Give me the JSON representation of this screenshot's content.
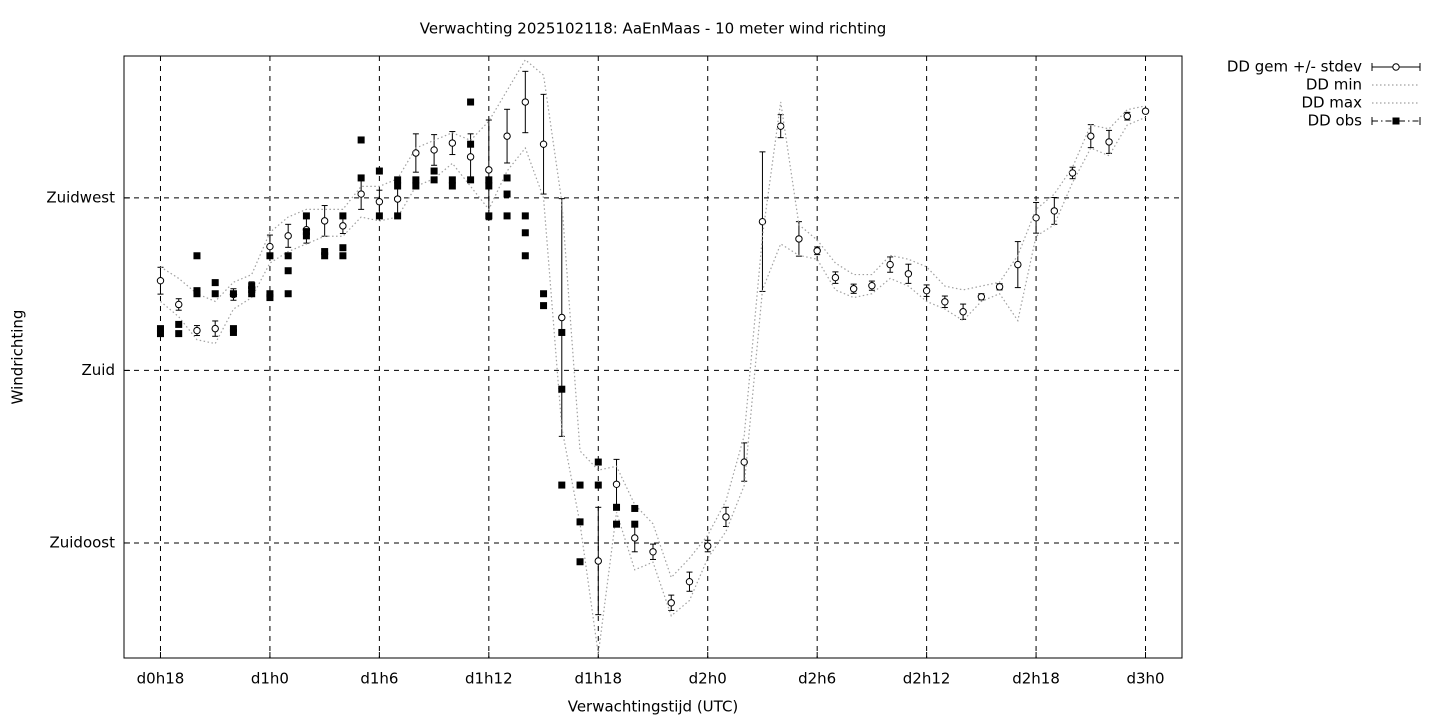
{
  "chart_data": {
    "type": "errorbar",
    "title": "Verwachting 2025102118: AaEnMaas - 10 meter wind richting",
    "xlabel": "Verwachtingstijd (UTC)",
    "ylabel": "Windrichting",
    "xlim": [
      16,
      74
    ],
    "ylim": [
      105,
      262
    ],
    "xticks": [
      {
        "value": 18,
        "label": "d0h18"
      },
      {
        "value": 24,
        "label": "d1h0"
      },
      {
        "value": 30,
        "label": "d1h6"
      },
      {
        "value": 36,
        "label": "d1h12"
      },
      {
        "value": 42,
        "label": "d1h18"
      },
      {
        "value": 48,
        "label": "d2h0"
      },
      {
        "value": 54,
        "label": "d2h6"
      },
      {
        "value": 60,
        "label": "d2h12"
      },
      {
        "value": 66,
        "label": "d2h18"
      },
      {
        "value": 72,
        "label": "d3h0"
      }
    ],
    "yticks": [
      {
        "value": 135,
        "label": "Zuidoost"
      },
      {
        "value": 180,
        "label": "Zuid"
      },
      {
        "value": 225,
        "label": "Zuidwest"
      }
    ],
    "grid": true,
    "legend": "outside-top-right",
    "x": [
      18,
      19,
      20,
      21,
      22,
      23,
      24,
      25,
      26,
      27,
      28,
      29,
      30,
      31,
      32,
      33,
      34,
      35,
      36,
      37,
      38,
      39,
      40,
      41,
      42,
      43,
      44,
      45,
      46,
      47,
      48,
      49,
      50,
      51,
      52,
      53,
      54,
      55,
      56,
      57,
      58,
      59,
      60,
      61,
      62,
      63,
      64,
      65,
      66,
      67,
      68,
      69,
      70,
      71,
      72
    ],
    "series": [
      {
        "name": "DD gem +/- stdev",
        "style": "errorbar",
        "color": "#000000",
        "values": [
          203.4,
          197.2,
          190.4,
          190.9,
          199.8,
          201.6,
          212.3,
          215.1,
          216.7,
          219,
          217.7,
          226,
          224,
          224.7,
          236.7,
          237.5,
          239.3,
          235.7,
          232.3,
          241.1,
          250,
          239,
          193.8,
          null,
          130.3,
          150.3,
          136.3,
          132.7,
          119.4,
          124.9,
          134.2,
          141.8,
          156.1,
          218.8,
          243.7,
          214.3,
          211.2,
          204.2,
          201.3,
          202.1,
          207.6,
          205.2,
          200.8,
          197.9,
          195.3,
          199.2,
          201.8,
          207.6,
          219.8,
          221.6,
          231.5,
          241.1,
          239.6,
          246.3,
          247.6
        ],
        "errors": [
          3.5,
          1.5,
          1.3,
          2,
          1.5,
          1.5,
          3,
          3,
          3.5,
          4,
          2,
          4,
          3,
          5,
          5,
          4,
          3,
          6,
          13,
          7,
          8,
          13,
          31,
          null,
          14,
          6.5,
          3.6,
          2,
          2,
          2.5,
          1.5,
          2.5,
          5,
          18.2,
          3,
          4.5,
          1,
          1.5,
          1.2,
          1.2,
          2,
          2.5,
          1.5,
          1.5,
          2,
          0.8,
          0.8,
          6,
          4,
          3.5,
          1.5,
          3,
          3,
          1,
          0.5
        ]
      },
      {
        "name": "DD min",
        "style": "dotted",
        "color": "#a0a0a0",
        "values": [
          198,
          194,
          188,
          187,
          196,
          199,
          208,
          211,
          213,
          215,
          215,
          220,
          219,
          220,
          228,
          230,
          234,
          228,
          222,
          232,
          238,
          225,
          165,
          140,
          106,
          143,
          128,
          130,
          116,
          120,
          131,
          138,
          150,
          201,
          213,
          210,
          209,
          201,
          199,
          200,
          204,
          202,
          198,
          196,
          193,
          198,
          200,
          193,
          215,
          218,
          229,
          238,
          236,
          244,
          246
        ]
      },
      {
        "name": "DD max",
        "style": "dotted",
        "color": "#a0a0a0",
        "values": [
          207,
          204,
          200,
          198,
          203,
          205,
          216,
          220,
          222,
          222,
          222,
          228,
          228,
          230,
          238,
          240,
          242,
          240,
          245,
          253,
          261,
          257,
          224,
          159,
          154,
          155,
          145,
          140,
          126,
          131,
          137,
          146,
          163,
          215,
          250,
          218,
          214,
          208,
          205,
          205,
          210,
          209,
          207,
          202,
          201,
          202,
          203,
          210,
          222,
          226,
          233,
          244,
          243,
          248,
          249
        ]
      },
      {
        "name": "DD obs",
        "style": "points",
        "color": "#000000",
        "x": [
          18,
          18,
          19,
          19,
          20,
          20,
          20,
          21,
          21,
          22,
          22,
          22,
          23,
          23,
          23,
          24,
          24,
          24,
          25,
          25,
          25,
          26,
          26,
          26,
          27,
          27,
          28,
          28,
          28,
          29,
          29,
          30,
          30,
          31,
          31,
          31,
          32,
          32,
          33,
          33,
          34,
          34,
          35,
          35,
          35,
          36,
          36,
          36,
          37,
          37,
          37,
          38,
          38,
          38,
          39,
          39,
          40,
          40,
          40,
          41,
          41,
          41,
          42,
          42,
          43,
          43,
          44,
          44
        ],
        "values": [
          190.9,
          189.6,
          192,
          189.6,
          209.9,
          200.8,
          200,
          202.9,
          200,
          200,
          190.9,
          189.9,
          202.1,
          201.1,
          200,
          209.9,
          200,
          199,
          209.9,
          206,
          200,
          220.3,
          216.2,
          215.1,
          211,
          209.9,
          220.3,
          212,
          209.9,
          240.1,
          230.2,
          232,
          220.3,
          229.7,
          228.1,
          220.3,
          229.7,
          228.1,
          232,
          229.7,
          229.7,
          228.1,
          250,
          239,
          229.7,
          229.7,
          228.1,
          220.3,
          230.2,
          226,
          220.3,
          220.3,
          215.9,
          209.9,
          200,
          196.9,
          189.9,
          175.1,
          150.1,
          150.1,
          140.5,
          130.1,
          156.1,
          150.1,
          144.3,
          139.9,
          144,
          139.9
        ]
      }
    ]
  }
}
